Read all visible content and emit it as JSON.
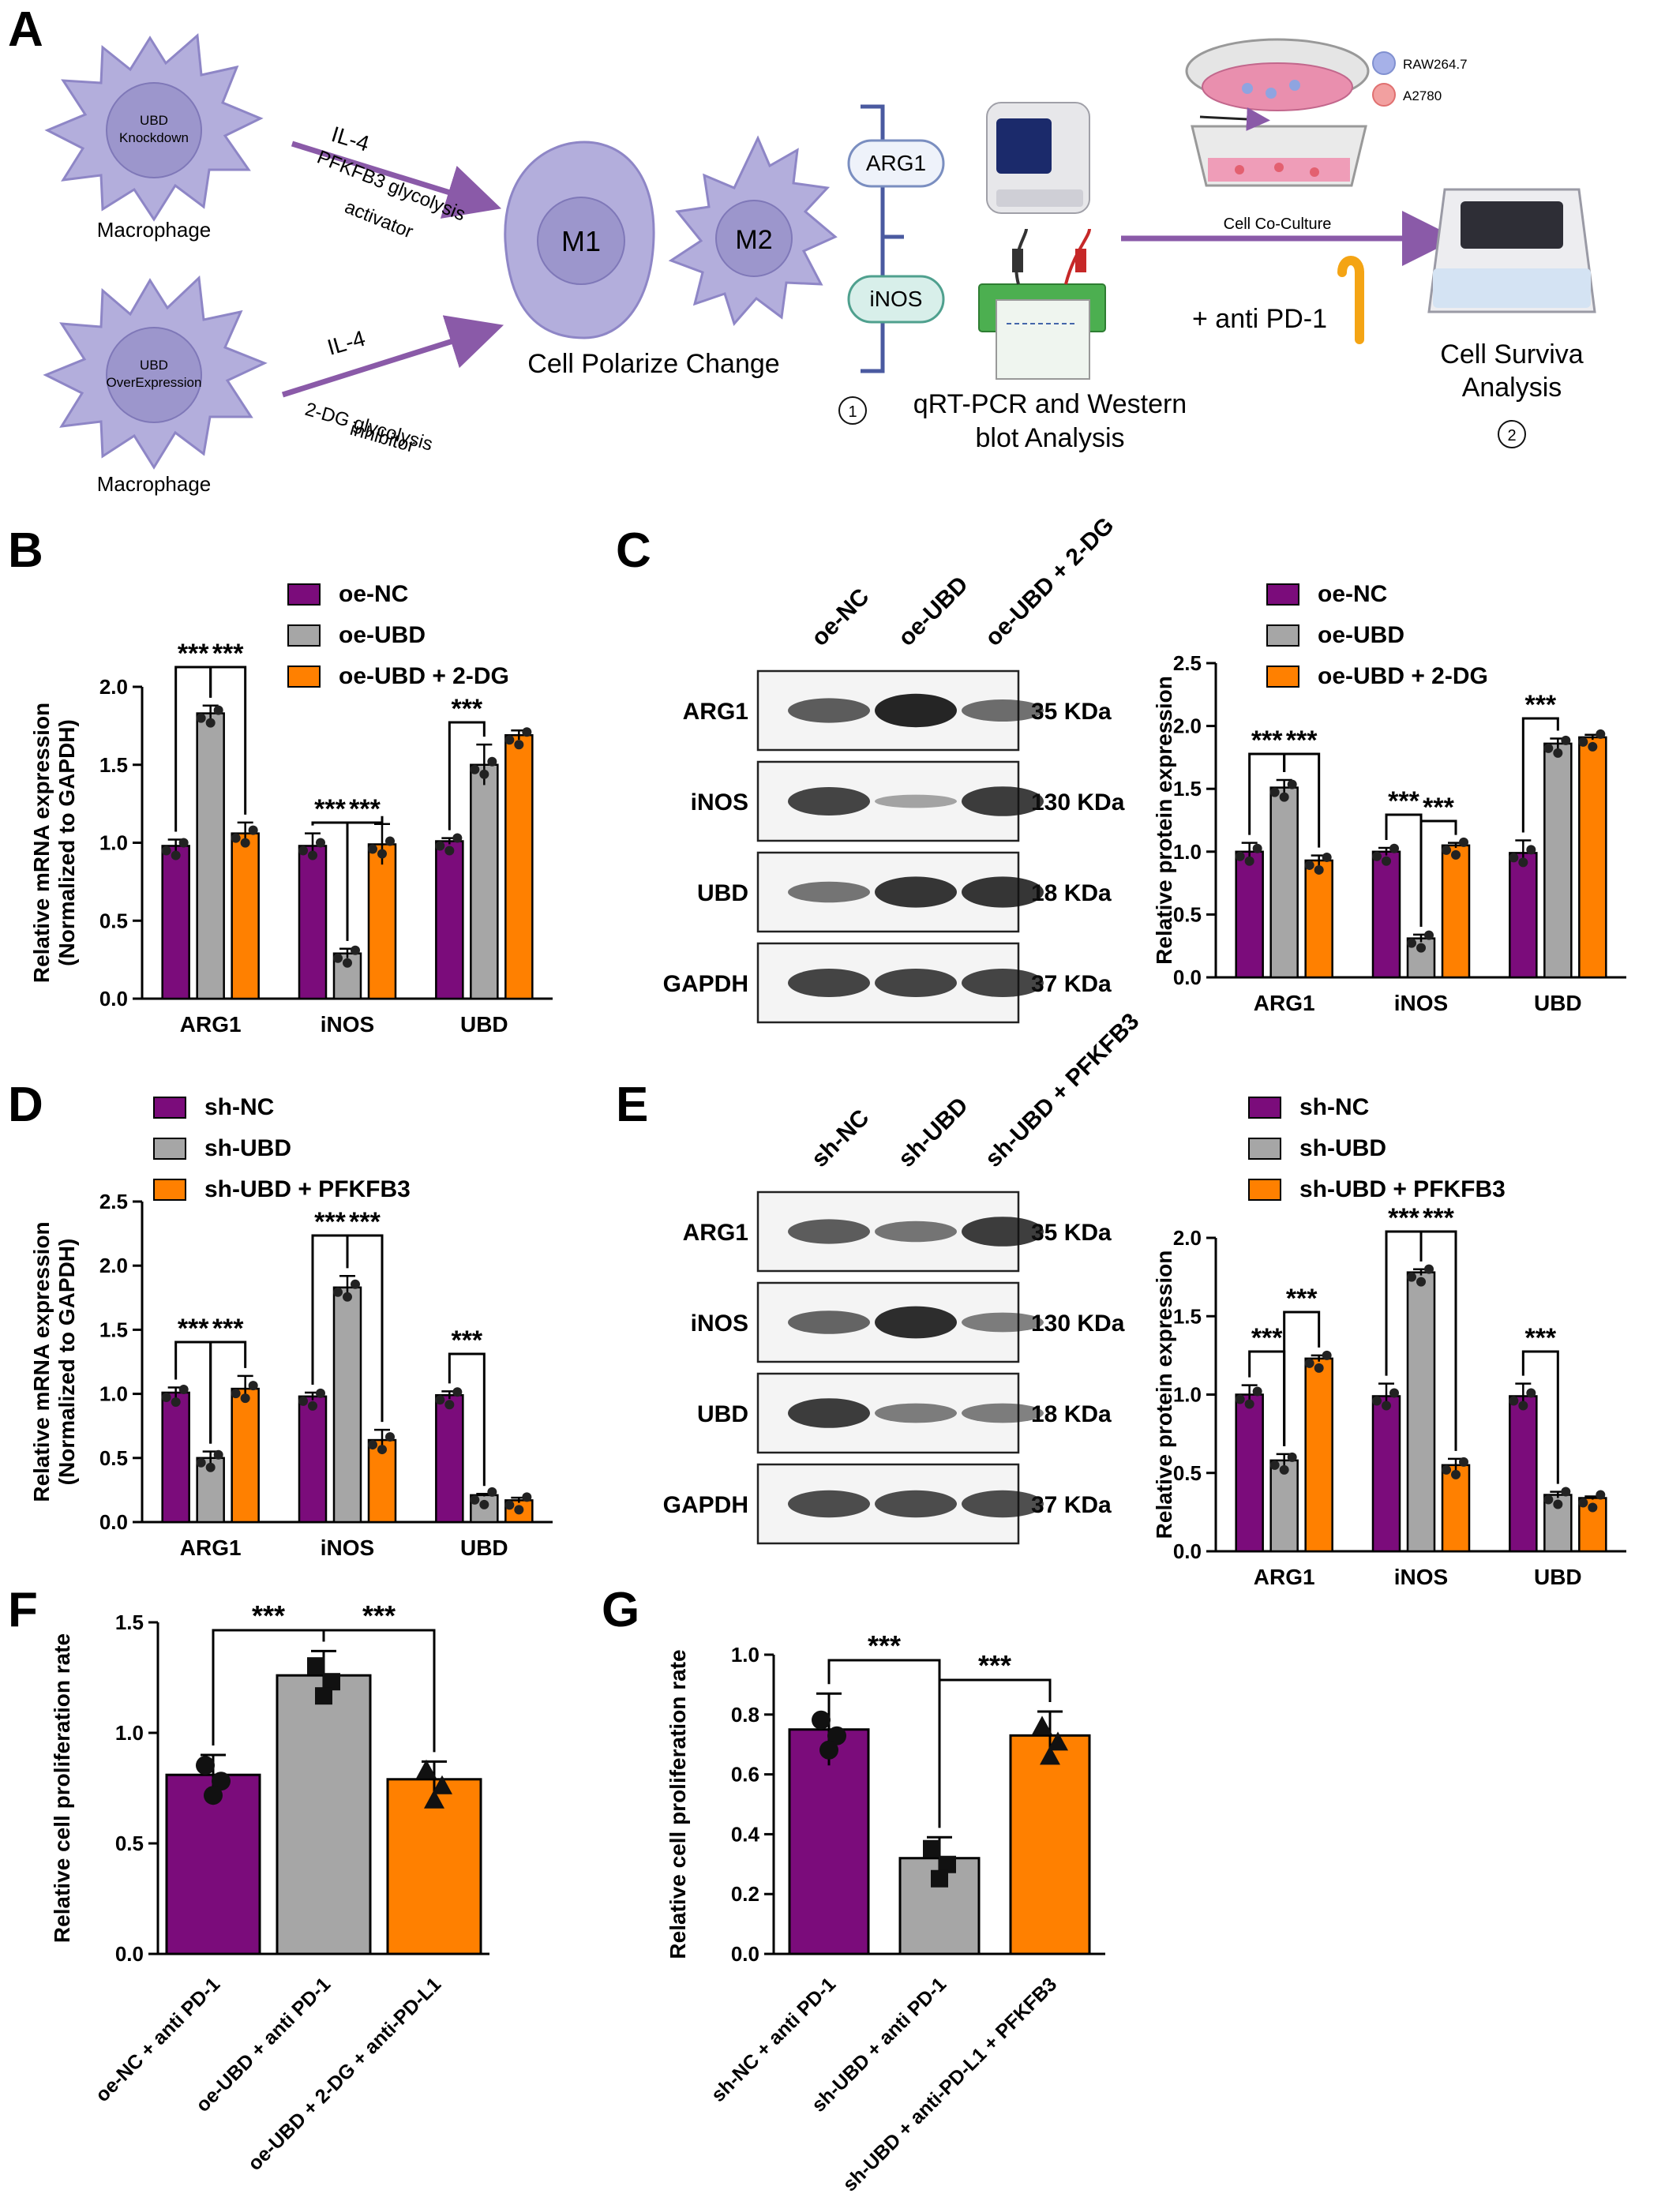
{
  "colors": {
    "purple": "#7B0C7B",
    "gray": "#A6A6A6",
    "orange": "#FF8000",
    "cell_fill": "#B3AEDC",
    "cell_stroke": "#8E86C6",
    "nucleus": "#9C96CC",
    "arrow": "#8A5AA8"
  },
  "panel_a": {
    "letter": "A",
    "top_cell_title": "UBD",
    "top_cell_sub": "Knockdown",
    "bottom_cell_title": "UBD",
    "bottom_cell_sub": "OverExpression",
    "macrophage_top": "Macrophage",
    "macrophage_bottom": "Macrophage",
    "il4_top": "IL-4",
    "activator_line1": "PFKFB3 glycolysis",
    "activator_line2": "activator",
    "il4_bottom": "IL-4",
    "inhibitor_line1": "2-DG glycolysis",
    "inhibitor_line2": "inhibitor",
    "m1": "M1",
    "m2": "M2",
    "polarize": "Cell Polarize Change",
    "arg1": "ARG1",
    "inos": "iNOS",
    "step1_num": "1",
    "step1_line1": "qRT-PCR and Western",
    "step1_line2": "blot Analysis",
    "raw": "RAW264.7",
    "a2780": "A2780",
    "coculture": "Cell Co-Culture",
    "antipd1": "+ anti PD-1",
    "survival_line1": "Cell Surviva",
    "survival_line2": "Analysis",
    "step2_num": "2"
  },
  "chart_data": [
    {
      "panel": "B",
      "type": "bar",
      "ylabel": "Relative mRNA expression",
      "ylabel2": "(Normalized to GAPDH)",
      "ylim": [
        0,
        2.0
      ],
      "yticks": [
        "0.0",
        "0.5",
        "1.0",
        "1.5",
        "2.0"
      ],
      "categories": [
        "ARG1",
        "iNOS",
        "UBD"
      ],
      "series": [
        {
          "name": "oe-NC",
          "values": [
            0.98,
            0.98,
            1.01
          ],
          "err": [
            0.04,
            0.08,
            0.02
          ]
        },
        {
          "name": "oe-UBD",
          "values": [
            1.83,
            0.29,
            1.5
          ],
          "err": [
            0.05,
            0.03,
            0.13
          ]
        },
        {
          "name": "oe-UBD + 2-DG",
          "values": [
            1.06,
            0.99,
            1.69
          ],
          "err": [
            0.07,
            0.13,
            0.03
          ]
        }
      ],
      "sig": "***",
      "legend": "top"
    },
    {
      "panel": "C",
      "type": "bar",
      "ylabel": "Relative protein expression",
      "ylim": [
        0,
        2.5
      ],
      "yticks": [
        "0.0",
        "0.5",
        "1.0",
        "1.5",
        "2.0",
        "2.5"
      ],
      "categories": [
        "ARG1",
        "iNOS",
        "UBD"
      ],
      "series": [
        {
          "name": "oe-NC",
          "values": [
            1.0,
            1.0,
            0.99
          ],
          "err": [
            0.07,
            0.03,
            0.1
          ]
        },
        {
          "name": "oe-UBD",
          "values": [
            1.51,
            0.31,
            1.86
          ],
          "err": [
            0.06,
            0.03,
            0.04
          ]
        },
        {
          "name": "oe-UBD + 2-DG",
          "values": [
            0.93,
            1.05,
            1.91
          ],
          "err": [
            0.04,
            0.02,
            0.02
          ]
        }
      ],
      "sig": "***",
      "legend": "top"
    },
    {
      "panel": "D",
      "type": "bar",
      "ylabel": "Relative mRNA expression",
      "ylabel2": "(Normalized to GAPDH)",
      "ylim": [
        0,
        2.5
      ],
      "yticks": [
        "0.0",
        "0.5",
        "1.0",
        "1.5",
        "2.0",
        "2.5"
      ],
      "categories": [
        "ARG1",
        "iNOS",
        "UBD"
      ],
      "series": [
        {
          "name": "sh-NC",
          "values": [
            1.01,
            0.98,
            0.99
          ],
          "err": [
            0.04,
            0.03,
            0.03
          ]
        },
        {
          "name": "sh-UBD",
          "values": [
            0.5,
            1.83,
            0.21
          ],
          "err": [
            0.05,
            0.09,
            0.01
          ]
        },
        {
          "name": "sh-UBD + PFKFB3",
          "values": [
            1.04,
            0.64,
            0.17
          ],
          "err": [
            0.1,
            0.08,
            0.02
          ]
        }
      ],
      "sig": "***",
      "legend": "top"
    },
    {
      "panel": "E",
      "type": "bar",
      "ylabel": "Relative protein expression",
      "ylim": [
        0,
        2.0
      ],
      "yticks": [
        "0.0",
        "0.5",
        "1.0",
        "1.5",
        "2.0"
      ],
      "categories": [
        "ARG1",
        "iNOS",
        "UBD"
      ],
      "series": [
        {
          "name": "sh-NC",
          "values": [
            1.0,
            0.99,
            0.99
          ],
          "err": [
            0.06,
            0.08,
            0.08
          ]
        },
        {
          "name": "sh-UBD",
          "values": [
            0.58,
            1.78,
            0.36
          ],
          "err": [
            0.04,
            0.02,
            0.02
          ]
        },
        {
          "name": "sh-UBD + PFKFB3",
          "values": [
            1.23,
            0.55,
            0.34
          ],
          "err": [
            0.02,
            0.04,
            0.01
          ]
        }
      ],
      "sig": "***",
      "legend": "top"
    },
    {
      "panel": "F",
      "type": "bar",
      "ylabel": "Relative cell proliferation rate",
      "ylim": [
        0,
        1.5
      ],
      "yticks": [
        "0.0",
        "0.5",
        "1.0",
        "1.5"
      ],
      "categories": [
        "oe-NC + anti PD-1",
        "oe-UBD + anti PD-1",
        "oe-UBD + 2-DG + anti-PD-L1"
      ],
      "values": [
        0.81,
        1.26,
        0.79
      ],
      "err": [
        0.09,
        0.11,
        0.08
      ],
      "sig": "***"
    },
    {
      "panel": "G",
      "type": "bar",
      "ylabel": "Relative cell proliferation rate",
      "ylim": [
        0,
        1.0
      ],
      "yticks": [
        "0.0",
        "0.2",
        "0.4",
        "0.6",
        "0.8",
        "1.0"
      ],
      "categories": [
        "sh-NC + anti PD-1",
        "sh-UBD + anti PD-1",
        "sh-UBD + anti-PD-L1 + PFKFB3"
      ],
      "values": [
        0.75,
        0.32,
        0.73
      ],
      "err": [
        0.12,
        0.07,
        0.08
      ],
      "sig": "***"
    }
  ],
  "blot_c": {
    "lanes": [
      "oe-NC",
      "oe-UBD",
      "oe-UBD + 2-DG"
    ],
    "bands": [
      {
        "name": "ARG1",
        "kda": "35 KDa"
      },
      {
        "name": "iNOS",
        "kda": "130 KDa"
      },
      {
        "name": "UBD",
        "kda": "18 KDa"
      },
      {
        "name": "GAPDH",
        "kda": "37 KDa"
      }
    ]
  },
  "blot_e": {
    "lanes": [
      "sh-NC",
      "sh-UBD",
      "sh-UBD + PFKFB3"
    ],
    "bands": [
      {
        "name": "ARG1",
        "kda": "35 KDa"
      },
      {
        "name": "iNOS",
        "kda": "130 KDa"
      },
      {
        "name": "UBD",
        "kda": "18 KDa"
      },
      {
        "name": "GAPDH",
        "kda": "37 KDa"
      }
    ]
  },
  "letters": {
    "b": "B",
    "c": "C",
    "d": "D",
    "e": "E",
    "f": "F",
    "g": "G"
  }
}
